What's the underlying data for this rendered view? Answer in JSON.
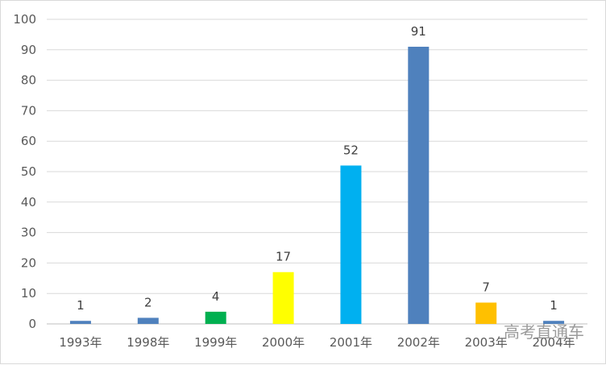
{
  "chart_data": {
    "type": "bar",
    "categories": [
      "1993年",
      "1998年",
      "1999年",
      "2000年",
      "2001年",
      "2002年",
      "2003年",
      "2004年"
    ],
    "values": [
      1,
      2,
      4,
      17,
      52,
      91,
      7,
      1
    ],
    "colors": [
      "#4f81bd",
      "#4f81bd",
      "#00b050",
      "#ffff00",
      "#00b0f0",
      "#4f81bd",
      "#ffc000",
      "#4f81bd"
    ],
    "ylim": [
      0,
      100
    ],
    "yticks": [
      "0",
      "10",
      "20",
      "30",
      "40",
      "50",
      "60",
      "70",
      "80",
      "90",
      "100"
    ],
    "grid": true,
    "data_labels": true
  },
  "watermark": "高考直通车"
}
